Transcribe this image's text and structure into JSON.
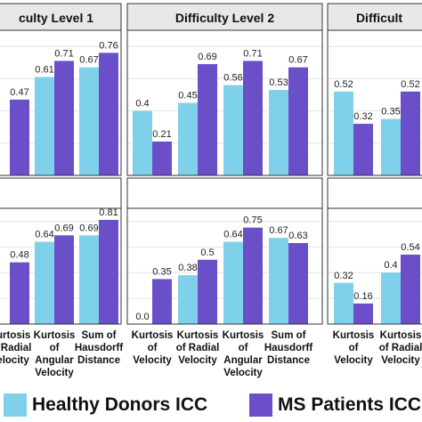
{
  "colors": {
    "healthy": "#7fd0ea",
    "ms": "#6a4fc8",
    "strip": "#e8e8e8",
    "grid": "#e4e4e4"
  },
  "legend": {
    "healthy": "Healthy Donors ICC",
    "ms": "MS Patients ICC"
  },
  "chart_data": {
    "type": "bar",
    "columns": [
      "culty Level 1",
      "Difficulty Level 2",
      "Difficult"
    ],
    "series": [
      {
        "name": "Healthy Donors ICC"
      },
      {
        "name": "MS Patients ICC"
      }
    ],
    "ylim": [
      0,
      0.9
    ],
    "grid": true,
    "panels": [
      {
        "row": 0,
        "col": 0,
        "categories": [
          "",
          "",
          ""
        ],
        "healthy": [
          null,
          0.61,
          0.67
        ],
        "ms": [
          0.47,
          0.71,
          0.76
        ],
        "healthy_labels": [
          "",
          "0.61",
          "0.67"
        ],
        "ms_labels": [
          "0.47",
          "0.71",
          "0.76"
        ]
      },
      {
        "row": 0,
        "col": 1,
        "categories": [
          "",
          "",
          "",
          ""
        ],
        "healthy": [
          0.4,
          0.45,
          0.56,
          0.53
        ],
        "ms": [
          0.21,
          0.69,
          0.71,
          0.67
        ],
        "healthy_labels": [
          "0.4",
          "0.45",
          "0.56",
          "0.53"
        ],
        "ms_labels": [
          "0.21",
          "0.69",
          "0.71",
          "0.67"
        ]
      },
      {
        "row": 0,
        "col": 2,
        "categories": [
          "",
          ""
        ],
        "healthy": [
          0.52,
          0.35
        ],
        "ms": [
          0.32,
          0.52
        ],
        "healthy_labels": [
          "0.52",
          "0.35"
        ],
        "ms_labels": [
          "0.32",
          "0.52"
        ]
      },
      {
        "row": 1,
        "col": 0,
        "categories": [
          "Kurtosis\nof Radial\nVelocity",
          "Kurtosis\nof\nAngular\nVelocity",
          "Sum of\nHausdorff\nDistance"
        ],
        "healthy": [
          null,
          0.64,
          0.69
        ],
        "ms": [
          0.48,
          0.69,
          0.81
        ],
        "healthy_labels": [
          "",
          "0.64",
          "0.69"
        ],
        "ms_labels": [
          "0.48",
          "0.69",
          "0.81"
        ]
      },
      {
        "row": 1,
        "col": 1,
        "categories": [
          "Kurtosis\nof\nVelocity",
          "Kurtosis\nof Radial\nVelocity",
          "Kurtosis\nof\nAngular\nVelocity",
          "Sum of\nHausdorff\nDistance"
        ],
        "healthy": [
          0.0,
          0.38,
          0.64,
          0.67
        ],
        "ms": [
          0.35,
          0.5,
          0.75,
          0.63
        ],
        "healthy_labels": [
          "0.0",
          "0.38",
          "0.64",
          "0.67"
        ],
        "ms_labels": [
          "0.35",
          "0.5",
          "0.75",
          "0.63"
        ]
      },
      {
        "row": 1,
        "col": 2,
        "categories": [
          "Kurtosis\nof\nVelocity",
          "Kurtosis\nof Radial\nVelocity"
        ],
        "healthy": [
          0.32,
          0.4
        ],
        "ms": [
          0.16,
          0.54
        ],
        "healthy_labels": [
          "0.32",
          "0.4"
        ],
        "ms_labels": [
          "0.16",
          "0.54"
        ]
      }
    ]
  }
}
